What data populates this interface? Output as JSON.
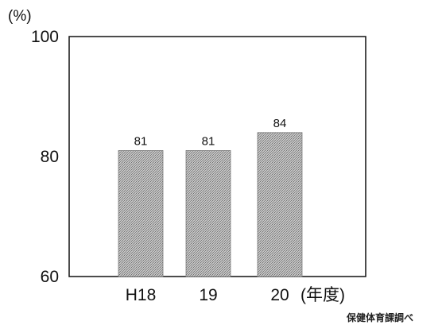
{
  "chart_data": {
    "type": "bar",
    "categories": [
      "H18",
      "19",
      "20"
    ],
    "values": [
      81,
      81,
      84
    ],
    "data_labels": [
      "81",
      "81",
      "84"
    ],
    "title": "",
    "ylabel": "(%)",
    "xlabel": "(年度)",
    "ylim": [
      60,
      100
    ],
    "yticks": [
      60,
      80,
      100
    ],
    "grid": false,
    "legend": "none",
    "bar_color": "#a8a8a8",
    "source": "保健体育課調べ"
  }
}
